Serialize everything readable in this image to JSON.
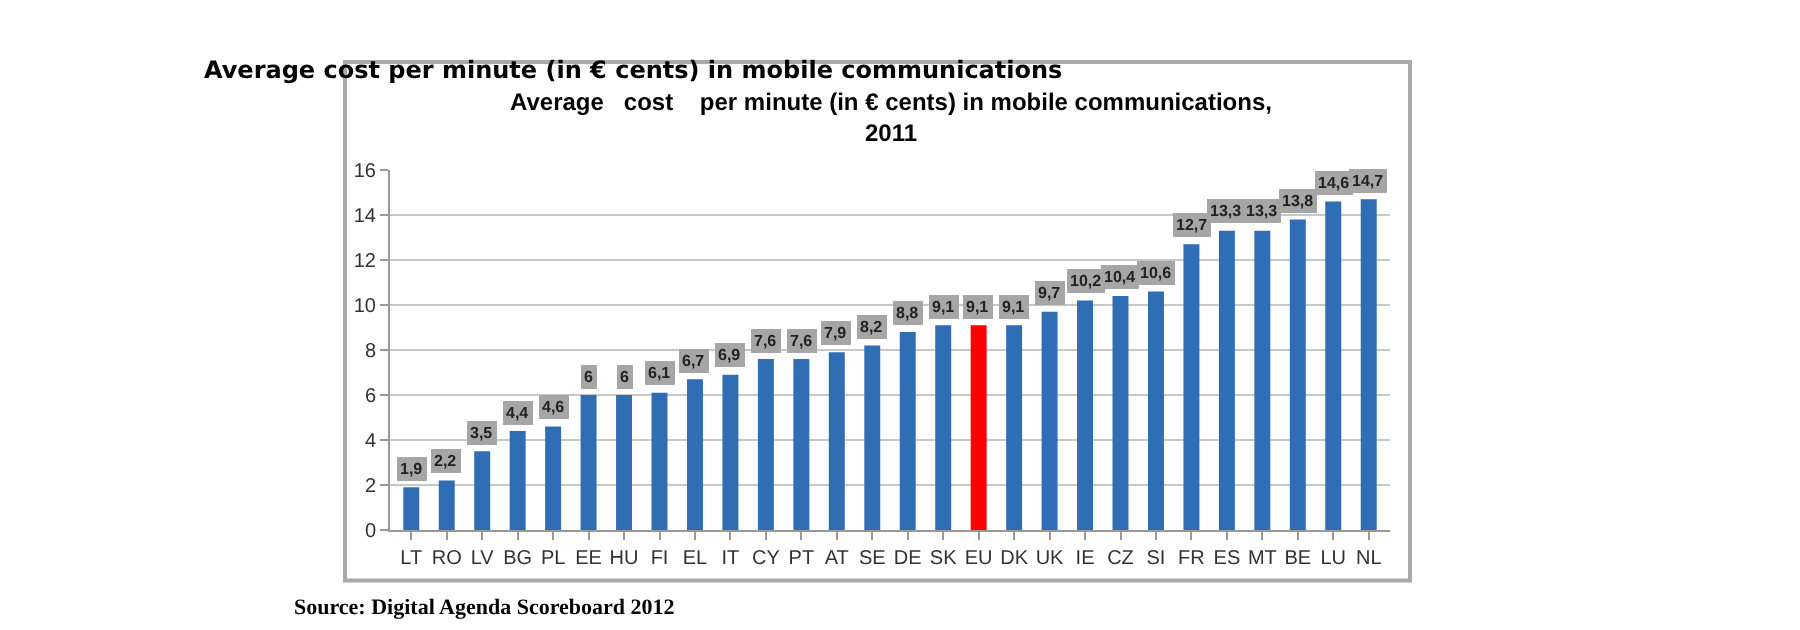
{
  "chart_data": {
    "type": "bar",
    "title": "Average cost per minute (in € cents) in mobile communications",
    "subtitle": "Average   cost    per minute (in € cents) in mobile communications,\n2011",
    "categories": [
      "LT",
      "RO",
      "LV",
      "BG",
      "PL",
      "EE",
      "HU",
      "FI",
      "EL",
      "IT",
      "CY",
      "PT",
      "AT",
      "SE",
      "DE",
      "SK",
      "EU",
      "DK",
      "UK",
      "IE",
      "CZ",
      "SI",
      "FR",
      "ES",
      "MT",
      "BE",
      "LU",
      "NL"
    ],
    "values": [
      1.9,
      2.2,
      3.5,
      4.4,
      4.6,
      6,
      6,
      6.1,
      6.7,
      6.9,
      7.6,
      7.6,
      7.9,
      8.2,
      8.8,
      9.1,
      9.1,
      9.1,
      9.7,
      10.2,
      10.4,
      10.6,
      12.7,
      13.3,
      13.3,
      13.8,
      14.6,
      14.7
    ],
    "value_labels": [
      "1,9",
      "2,2",
      "3,5",
      "4,4",
      "4,6",
      "6",
      "6",
      "6,1",
      "6,7",
      "6,9",
      "7,6",
      "7,6",
      "7,9",
      "8,2",
      "8,8",
      "9,1",
      "9,1",
      "9,1",
      "9,7",
      "10,2",
      "10,4",
      "10,6",
      "12,7",
      "13,3",
      "13,3",
      "13,8",
      "14,6",
      "14,7"
    ],
    "colors": [
      "#2f6db5",
      "#2f6db5",
      "#2f6db5",
      "#2f6db5",
      "#2f6db5",
      "#2f6db5",
      "#2f6db5",
      "#2f6db5",
      "#2f6db5",
      "#2f6db5",
      "#2f6db5",
      "#2f6db5",
      "#2f6db5",
      "#2f6db5",
      "#2f6db5",
      "#2f6db5",
      "#ff0000",
      "#2f6db5",
      "#2f6db5",
      "#2f6db5",
      "#2f6db5",
      "#2f6db5",
      "#2f6db5",
      "#2f6db5",
      "#2f6db5",
      "#2f6db5",
      "#2f6db5",
      "#2f6db5"
    ],
    "ylim": [
      0,
      16
    ],
    "yticks": [
      0,
      2,
      4,
      6,
      8,
      10,
      12,
      14,
      16
    ],
    "grid": "y",
    "legend": false,
    "annotations": [
      "Source: Digital Agenda Scoreboard 2012"
    ]
  }
}
